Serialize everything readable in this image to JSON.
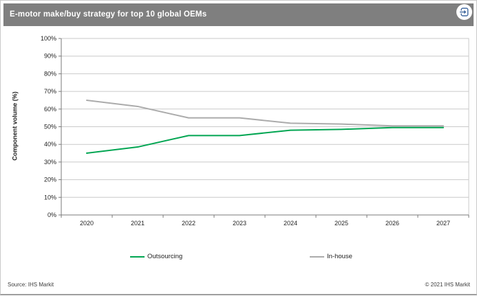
{
  "chart_data": {
    "type": "line",
    "title": "E-motor make/buy strategy for top 10 global OEMs",
    "categories": [
      "2020",
      "2021",
      "2022",
      "2023",
      "2024",
      "2025",
      "2026",
      "2027"
    ],
    "series": [
      {
        "name": "Outsourcing",
        "color": "#00A551",
        "values": [
          35,
          38.5,
          45,
          45,
          48,
          48.5,
          49.5,
          49.5
        ]
      },
      {
        "name": "In-house",
        "color": "#ABABAB",
        "values": [
          65,
          61.5,
          55,
          55,
          52,
          51.5,
          50.5,
          50.5
        ]
      }
    ],
    "xlabel": "",
    "ylabel": "Component volume (%)",
    "ylim": [
      0,
      100
    ],
    "ytick_step": 10,
    "ytick_suffix": "%",
    "grid": true,
    "legend_position": "bottom"
  },
  "header": {
    "bar_color": "#7F7F7F",
    "icon": "box-arrow-right-icon",
    "icon_color": "#41699F"
  },
  "footer": {
    "source": "Source: IHS Markit",
    "copyright": "© 2021 IHS Markit"
  }
}
